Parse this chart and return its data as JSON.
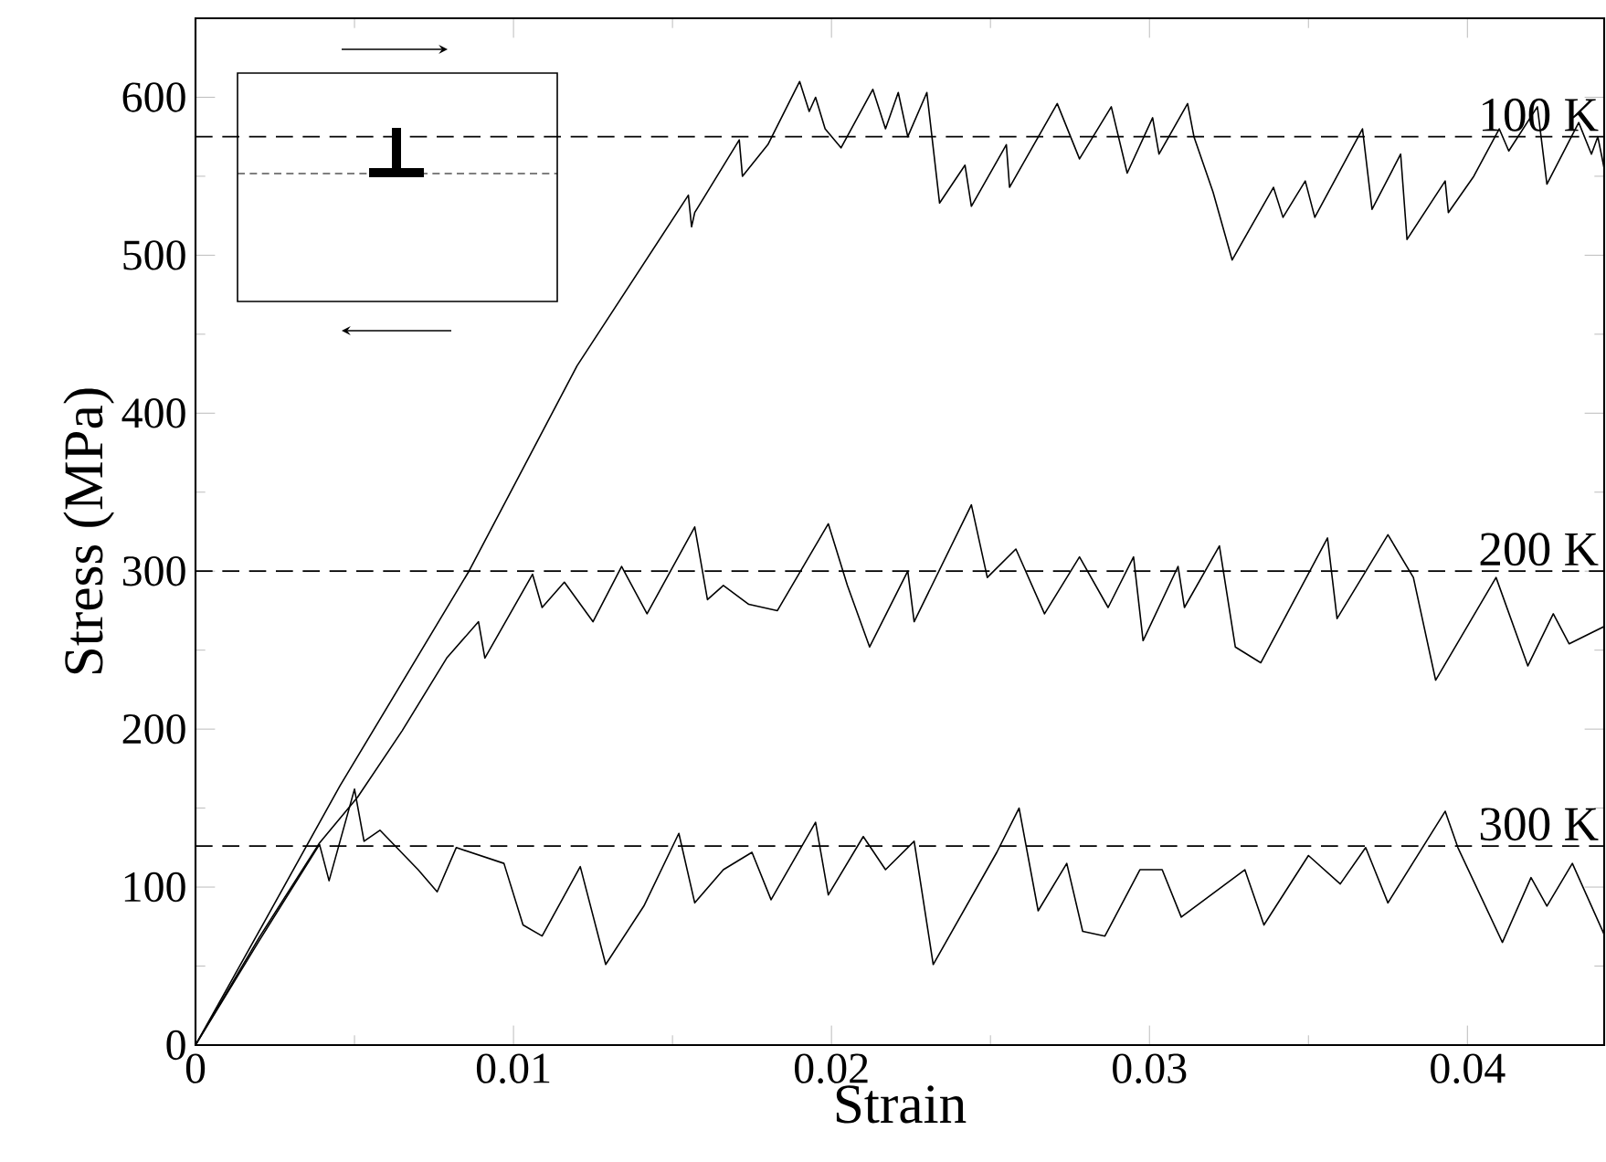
{
  "chart_data": {
    "type": "line",
    "xlabel": "Strain",
    "ylabel": "Stress (MPa)",
    "xlim": [
      0,
      0.0443
    ],
    "ylim": [
      0,
      650
    ],
    "xticks": [
      0,
      0.01,
      0.02,
      0.03,
      0.04
    ],
    "yticks": [
      0,
      100,
      200,
      300,
      400,
      500,
      600
    ],
    "grid": false,
    "line_style": "solid",
    "series": [
      {
        "color": "#000000",
        "x": [
          0,
          0.002,
          0.00454,
          0.0086,
          0.012,
          0.0155,
          0.0156,
          0.0157,
          0.0171,
          0.0172,
          0.018,
          0.019,
          0.0193,
          0.0195,
          0.0198,
          0.0203,
          0.0213,
          0.0217,
          0.0221,
          0.0224,
          0.023,
          0.0234,
          0.0242,
          0.0244,
          0.0255,
          0.0256,
          0.0271,
          0.0278,
          0.0288,
          0.0293,
          0.0301,
          0.0303,
          0.0312,
          0.0314,
          0.032,
          0.0326,
          0.0339,
          0.0342,
          0.0349,
          0.0352,
          0.0367,
          0.037,
          0.0379,
          0.0381,
          0.0393,
          0.0394,
          0.0402,
          0.041,
          0.0413,
          0.0422,
          0.0425,
          0.0435,
          0.0439,
          0.0441,
          0.0443
        ],
        "values": [
          0,
          72,
          164,
          300,
          430,
          538,
          518,
          527,
          573,
          550,
          570,
          610,
          591,
          600,
          580,
          568,
          605,
          580,
          603,
          575,
          603,
          533,
          557,
          531,
          570,
          543,
          596,
          561,
          594,
          552,
          587,
          564,
          596,
          575,
          540,
          497,
          543,
          524,
          547,
          524,
          580,
          529,
          564,
          510,
          547,
          527,
          550,
          580,
          566,
          594,
          545,
          584,
          564,
          575,
          555
        ]
      },
      {
        "color": "#000000",
        "x": [
          0,
          0.002,
          0.0039,
          0.0051,
          0.0065,
          0.0079,
          0.0089,
          0.0091,
          0.0106,
          0.0109,
          0.0116,
          0.0125,
          0.0134,
          0.0142,
          0.0157,
          0.0161,
          0.0166,
          0.0174,
          0.0183,
          0.0199,
          0.0205,
          0.0212,
          0.0224,
          0.0226,
          0.0244,
          0.0249,
          0.0258,
          0.0267,
          0.0278,
          0.0287,
          0.0295,
          0.0298,
          0.0309,
          0.0311,
          0.0322,
          0.0327,
          0.0335,
          0.0356,
          0.0359,
          0.0375,
          0.0383,
          0.039,
          0.0409,
          0.0419,
          0.0427,
          0.0432,
          0.0443
        ],
        "values": [
          0,
          68,
          128,
          157,
          199,
          245,
          268,
          245,
          298,
          277,
          293,
          268,
          303,
          273,
          328,
          282,
          291,
          279,
          275,
          330,
          291,
          252,
          300,
          268,
          342,
          296,
          314,
          273,
          309,
          277,
          309,
          256,
          303,
          277,
          316,
          252,
          242,
          321,
          270,
          323,
          296,
          231,
          296,
          240,
          273,
          254,
          265
        ]
      },
      {
        "color": "#000000",
        "x": [
          0,
          0.002,
          0.0039,
          0.0042,
          0.005,
          0.0053,
          0.0058,
          0.007,
          0.0076,
          0.0082,
          0.0097,
          0.0103,
          0.0109,
          0.0121,
          0.0129,
          0.0141,
          0.0152,
          0.0157,
          0.0166,
          0.0175,
          0.0181,
          0.0195,
          0.0199,
          0.021,
          0.0217,
          0.0226,
          0.0232,
          0.0252,
          0.0259,
          0.0265,
          0.0274,
          0.0279,
          0.0286,
          0.0297,
          0.0304,
          0.031,
          0.033,
          0.0336,
          0.035,
          0.036,
          0.0368,
          0.0375,
          0.0393,
          0.0397,
          0.0411,
          0.042,
          0.0425,
          0.0433,
          0.0443
        ],
        "values": [
          0,
          66,
          127,
          104,
          162,
          129,
          136,
          111,
          97,
          125,
          115,
          76,
          69,
          113,
          51,
          88,
          134,
          90,
          111,
          122,
          92,
          141,
          95,
          132,
          111,
          129,
          51,
          122,
          150,
          85,
          115,
          72,
          69,
          111,
          111,
          81,
          111,
          76,
          120,
          102,
          125,
          90,
          148,
          125,
          65,
          106,
          88,
          115,
          70
        ]
      }
    ],
    "ref_lines": [
      {
        "axis": "y",
        "value": 575,
        "label": "100 K",
        "line_style": "dashed",
        "color": "#000000"
      },
      {
        "axis": "y",
        "value": 300,
        "label": "200 K",
        "line_style": "dashed",
        "color": "#000000"
      },
      {
        "axis": "y",
        "value": 126,
        "label": "300 K",
        "line_style": "dashed",
        "color": "#000000"
      }
    ]
  }
}
